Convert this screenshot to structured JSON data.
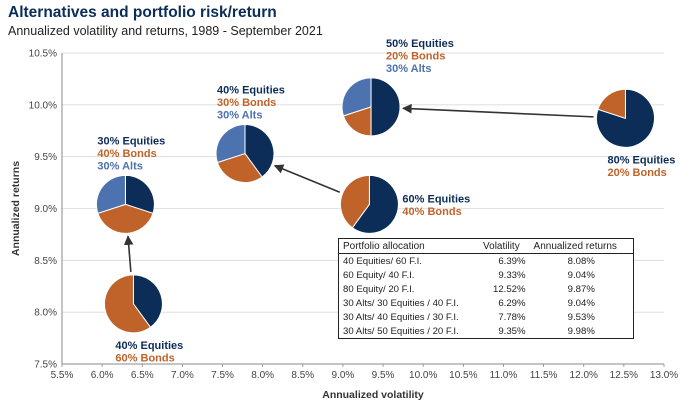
{
  "title": "Alternatives and portfolio risk/return",
  "subtitle": "Annualized volatility and returns, 1989 - September 2021",
  "colors": {
    "equities": "#0b2d57",
    "bonds": "#c0632a",
    "alts": "#4c72b0",
    "grid": "#d9d9d9",
    "arrow": "#333333"
  },
  "chart_data": {
    "type": "scatter",
    "xlabel": "Annualized volatility",
    "ylabel": "Annualized returns",
    "xlim": [
      5.5,
      13.0
    ],
    "ylim": [
      7.5,
      10.5
    ],
    "x_ticks": [
      "5.5%",
      "6.0%",
      "6.5%",
      "7.0%",
      "7.5%",
      "8.0%",
      "8.5%",
      "9.0%",
      "9.5%",
      "10.0%",
      "10.5%",
      "11.0%",
      "11.5%",
      "12.0%",
      "12.5%",
      "13.0%"
    ],
    "y_ticks": [
      "7.5%",
      "8.0%",
      "8.5%",
      "9.0%",
      "9.5%",
      "10.0%",
      "10.5%"
    ],
    "grid": true,
    "portfolios": [
      {
        "id": "40-60",
        "x": 6.39,
        "y": 8.08,
        "slices": {
          "equities": 40,
          "bonds": 60,
          "alts": 0
        },
        "label": [
          "40% Equities",
          "60% Bonds"
        ],
        "label_pos": "below"
      },
      {
        "id": "30-40-30",
        "x": 6.29,
        "y": 9.04,
        "slices": {
          "equities": 30,
          "bonds": 40,
          "alts": 30
        },
        "label": [
          "30% Equities",
          "40% Bonds",
          "30% Alts"
        ],
        "label_pos": "above"
      },
      {
        "id": "40-30-30",
        "x": 7.78,
        "y": 9.53,
        "slices": {
          "equities": 40,
          "bonds": 30,
          "alts": 30
        },
        "label": [
          "40% Equities",
          "30% Bonds",
          "30% Alts"
        ],
        "label_pos": "above"
      },
      {
        "id": "60-40",
        "x": 9.33,
        "y": 9.04,
        "slices": {
          "equities": 60,
          "bonds": 40,
          "alts": 0
        },
        "label": [
          "60% Equities",
          "40% Bonds"
        ],
        "label_pos": "right"
      },
      {
        "id": "50-20-30",
        "x": 9.35,
        "y": 9.98,
        "slices": {
          "equities": 50,
          "bonds": 20,
          "alts": 30
        },
        "label": [
          "50% Equities",
          "20% Bonds",
          "30% Alts"
        ],
        "label_pos": "above-right"
      },
      {
        "id": "80-20",
        "x": 12.52,
        "y": 9.87,
        "slices": {
          "equities": 80,
          "bonds": 20,
          "alts": 0
        },
        "label": [
          "80% Equities",
          "20% Bonds"
        ],
        "label_pos": "below"
      }
    ],
    "arrows": [
      {
        "from": "40-60",
        "to": "30-40-30"
      },
      {
        "from": "60-40",
        "to": "40-30-30"
      },
      {
        "from": "80-20",
        "to": "50-20-30"
      }
    ],
    "table": {
      "headers": [
        "Portfolio allocation",
        "Volatility",
        "Annualized returns"
      ],
      "rows": [
        [
          "40 Equities/ 60 F.I.",
          "6.39%",
          "8.08%"
        ],
        [
          "60 Equity/ 40 F.I.",
          "9.33%",
          "9.04%"
        ],
        [
          "80 Equity/ 20 F.I.",
          "12.52%",
          "9.87%"
        ],
        [
          "30 Alts/ 30 Equities / 40 F.I.",
          "6.29%",
          "9.04%"
        ],
        [
          "30 Alts/ 40 Equities / 30 F.I.",
          "7.78%",
          "9.53%"
        ],
        [
          "30 Alts/ 50 Equities / 20 F.I.",
          "9.35%",
          "9.98%"
        ]
      ]
    }
  }
}
